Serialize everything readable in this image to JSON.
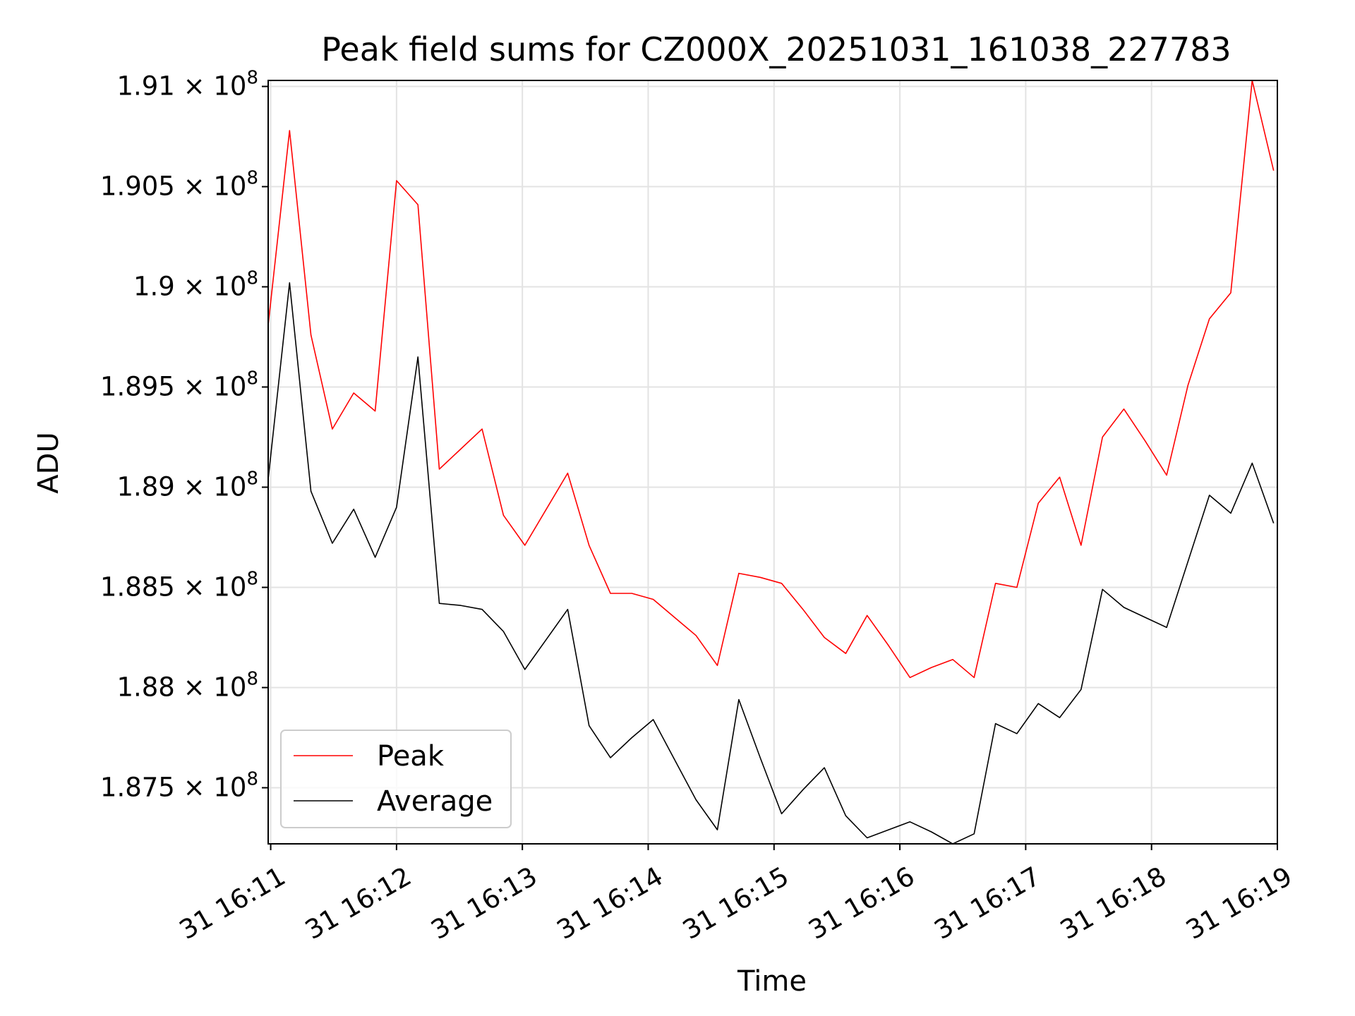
{
  "chart_data": {
    "type": "line",
    "title": "Peak field sums for CZ000X_20251031_161038_227783",
    "xlabel": "Time",
    "ylabel": "ADU",
    "xlim": [
      -0.02,
      8.0
    ],
    "ylim": [
      187220000.0,
      191030000.0
    ],
    "grid": true,
    "legend_location": "lower-left",
    "x_ticks": [
      {
        "value": 0,
        "label": "31 16:11"
      },
      {
        "value": 1,
        "label": "31 16:12"
      },
      {
        "value": 2,
        "label": "31 16:13"
      },
      {
        "value": 3,
        "label": "31 16:14"
      },
      {
        "value": 4,
        "label": "31 16:15"
      },
      {
        "value": 5,
        "label": "31 16:16"
      },
      {
        "value": 6,
        "label": "31 16:17"
      },
      {
        "value": 7,
        "label": "31 16:18"
      },
      {
        "value": 8,
        "label": "31 16:19"
      }
    ],
    "y_ticks": [
      {
        "value": 187500000.0,
        "mantissa": "1.875"
      },
      {
        "value": 188000000.0,
        "mantissa": "1.88"
      },
      {
        "value": 188500000.0,
        "mantissa": "1.885"
      },
      {
        "value": 189000000.0,
        "mantissa": "1.89"
      },
      {
        "value": 189500000.0,
        "mantissa": "1.895"
      },
      {
        "value": 190000000.0,
        "mantissa": "1.9"
      },
      {
        "value": 190500000.0,
        "mantissa": "1.905"
      },
      {
        "value": 191000000.0,
        "mantissa": "1.91"
      }
    ],
    "y_tick_multiplier": "× 10",
    "y_tick_exponent": "8",
    "x": [
      -0.02,
      0.15,
      0.32,
      0.49,
      0.66,
      0.83,
      1.0,
      1.17,
      1.34,
      1.51,
      1.68,
      1.85,
      2.02,
      2.19,
      2.36,
      2.53,
      2.7,
      2.87,
      3.04,
      3.21,
      3.38,
      3.55,
      3.72,
      3.89,
      4.06,
      4.23,
      4.4,
      4.57,
      4.74,
      4.91,
      5.08,
      5.25,
      5.42,
      5.59,
      5.76,
      5.93,
      6.1,
      6.27,
      6.44,
      6.61,
      6.78,
      6.95,
      7.12,
      7.29,
      7.46,
      7.63,
      7.8,
      7.97
    ],
    "series": [
      {
        "name": "Peak",
        "color": "#ff0000",
        "values": [
          189810000,
          190780000,
          189760000,
          189290000,
          189470000,
          189380000,
          190530000,
          190410000,
          189090000,
          189190000,
          189290000,
          188860000,
          188710000,
          188890000,
          189070000,
          188710000,
          188470000,
          188470000,
          188440000,
          188350000,
          188260000,
          188110000,
          188570000,
          188550000,
          188520000,
          188390000,
          188250000,
          188170000,
          188360000,
          188210000,
          188050000,
          188100000,
          188140000,
          188050000,
          188520000,
          188500000,
          188920000,
          189050000,
          188710000,
          189250000,
          189390000,
          189230000,
          189060000,
          189510000,
          189840000,
          189970000,
          191030000,
          190580000
        ]
      },
      {
        "name": "Average",
        "color": "#000000",
        "values": [
          189040000,
          190020000,
          188980000,
          188720000,
          188890000,
          188650000,
          188900000,
          189650000,
          188420000,
          188410000,
          188390000,
          188280000,
          188090000,
          188240000,
          188390000,
          187810000,
          187650000,
          187750000,
          187840000,
          187640000,
          187440000,
          187290000,
          187940000,
          187650000,
          187370000,
          187490000,
          187600000,
          187360000,
          187250000,
          187290000,
          187330000,
          187280000,
          187220000,
          187270000,
          187820000,
          187770000,
          187920000,
          187850000,
          187990000,
          188490000,
          188400000,
          188350000,
          188300000,
          188630000,
          188960000,
          188870000,
          189120000,
          188820000
        ]
      }
    ]
  }
}
